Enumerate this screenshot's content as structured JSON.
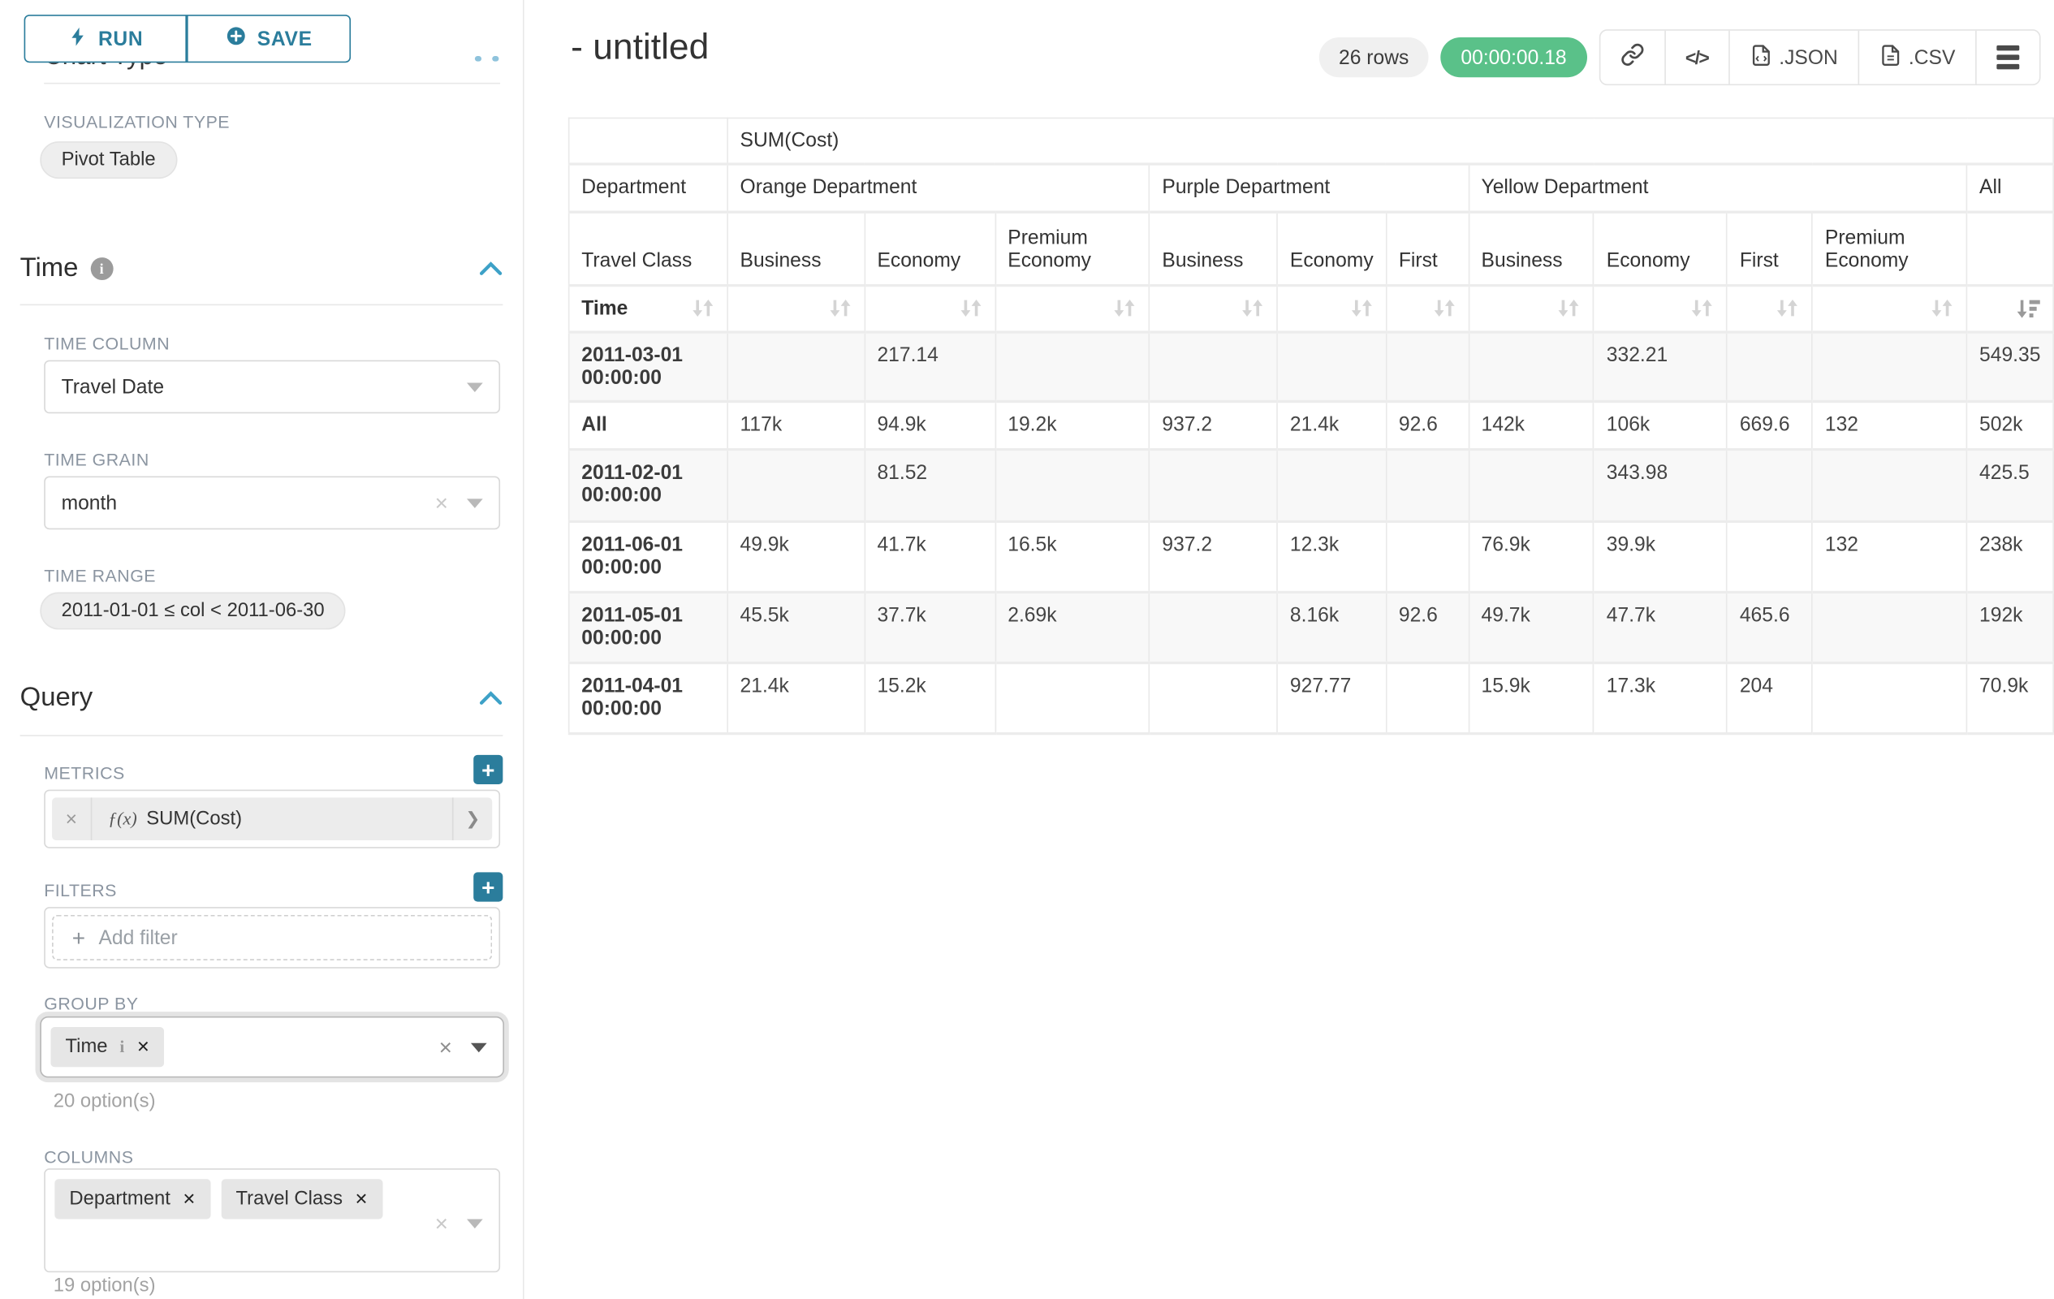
{
  "colors": {
    "accent": "#2b7d9c",
    "success": "#5ac189",
    "chevron": "#3da1c7"
  },
  "sidebar": {
    "chart_type_heading": "Chart Type",
    "run_label": "RUN",
    "save_label": "SAVE",
    "viz_label": "VISUALIZATION TYPE",
    "viz_value": "Pivot Table",
    "time_section": "Time",
    "time_column_label": "TIME COLUMN",
    "time_column_value": "Travel Date",
    "time_grain_label": "TIME GRAIN",
    "time_grain_value": "month",
    "time_range_label": "TIME RANGE",
    "time_range_value": "2011-01-01 ≤ col < 2011-06-30",
    "query_section": "Query",
    "metrics_label": "METRICS",
    "metric_fx": "ƒ(x)",
    "metric_value": "SUM(Cost)",
    "metric_remove": "×",
    "metric_chevron": "❯",
    "filters_label": "FILTERS",
    "add_filter_plus": "+",
    "add_filter_label": "Add filter",
    "group_by_label": "GROUP BY",
    "group_by": {
      "value": "Time",
      "info": "i",
      "remove": "✕",
      "options": "20 option(s)"
    },
    "columns_label": "COLUMNS",
    "columns": {
      "values": [
        "Department",
        "Travel Class"
      ],
      "remove": "✕",
      "options": "19 option(s)"
    },
    "plus_glyph": "+",
    "clear_glyph": "×",
    "info_glyph": "i"
  },
  "header": {
    "title": "- untitled",
    "rows_badge": "26 rows",
    "timer": "00:00:00.18",
    "code_glyph": "</>",
    "json_label": ".JSON",
    "csv_label": ".CSV"
  },
  "chart_data": {
    "type": "table",
    "title": "SUM(Cost)",
    "corner": {
      "row2": "Department",
      "row3": "Travel Class",
      "row4": "Time"
    },
    "column_groups": [
      {
        "label": "Orange Department",
        "children": [
          "Business",
          "Economy",
          "Premium Economy"
        ]
      },
      {
        "label": "Purple Department",
        "children": [
          "Business",
          "Economy",
          "First"
        ]
      },
      {
        "label": "Yellow Department",
        "children": [
          "Business",
          "Economy",
          "First",
          "Premium Economy"
        ]
      },
      {
        "label": "All",
        "children": [
          ""
        ]
      }
    ],
    "rows": [
      {
        "label": "2011-03-01 00:00:00",
        "values": [
          "",
          "217.14",
          "",
          "",
          "",
          "",
          "",
          "332.21",
          "",
          "",
          "549.35"
        ]
      },
      {
        "label": "All",
        "values": [
          "117k",
          "94.9k",
          "19.2k",
          "937.2",
          "21.4k",
          "92.6",
          "142k",
          "106k",
          "669.6",
          "132",
          "502k"
        ]
      },
      {
        "label": "2011-02-01 00:00:00",
        "values": [
          "",
          "81.52",
          "",
          "",
          "",
          "",
          "",
          "343.98",
          "",
          "",
          "425.5"
        ]
      },
      {
        "label": "2011-06-01 00:00:00",
        "values": [
          "49.9k",
          "41.7k",
          "16.5k",
          "937.2",
          "12.3k",
          "",
          "76.9k",
          "39.9k",
          "",
          "132",
          "238k"
        ]
      },
      {
        "label": "2011-05-01 00:00:00",
        "values": [
          "45.5k",
          "37.7k",
          "2.69k",
          "",
          "8.16k",
          "92.6",
          "49.7k",
          "47.7k",
          "465.6",
          "",
          "192k"
        ]
      },
      {
        "label": "2011-04-01 00:00:00",
        "values": [
          "21.4k",
          "15.2k",
          "",
          "",
          "927.77",
          "",
          "15.9k",
          "17.3k",
          "204",
          "",
          "70.9k"
        ]
      }
    ]
  }
}
